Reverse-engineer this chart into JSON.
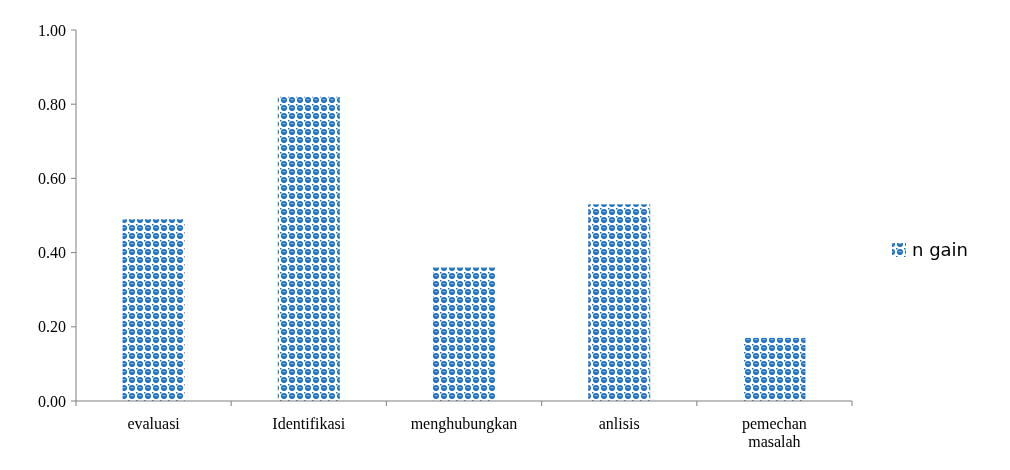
{
  "chart_data": {
    "type": "bar",
    "categories": [
      "evaluasi",
      "Identifikasi",
      "menghubungkan",
      "anlisis",
      "pemechan masalah"
    ],
    "series": [
      {
        "name": "n gain",
        "color": "#1b6fc4",
        "values": [
          0.49,
          0.82,
          0.36,
          0.53,
          0.17
        ]
      }
    ],
    "ylim": [
      0,
      1
    ],
    "yticks": [
      {
        "value": 0,
        "label": "0.00"
      },
      {
        "value": 0.2,
        "label": "0.20"
      },
      {
        "value": 0.4,
        "label": "0.40"
      },
      {
        "value": 0.6,
        "label": "0.60"
      },
      {
        "value": 0.8,
        "label": "0.80"
      },
      {
        "value": 1,
        "label": "1.00"
      }
    ],
    "grid": false,
    "legend": "right"
  }
}
